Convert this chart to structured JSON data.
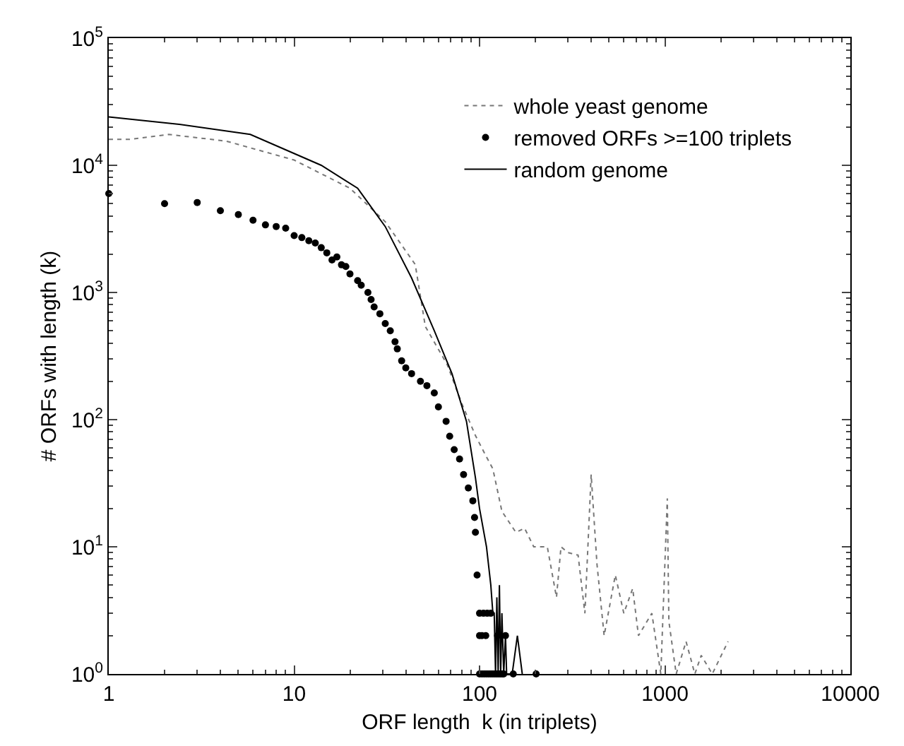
{
  "chart_data": {
    "type": "line",
    "xlabel": "ORF length  k (in triplets)",
    "ylabel": "# ORFs with length (k)",
    "log": "xy",
    "grid": false,
    "legend": "top right",
    "xlim": [
      1,
      10000
    ],
    "xticks": [
      1,
      10,
      100,
      1000,
      10000
    ],
    "ylim": [
      1,
      100000
    ],
    "yticks": [
      {
        "value": 1,
        "label": "10$^{0}$"
      },
      {
        "value": 10,
        "label": "10$^{1}$"
      },
      {
        "value": 100,
        "label": "10$^{2}$"
      },
      {
        "value": 1000,
        "label": "10$^{3}$"
      },
      {
        "value": 10000,
        "label": "10$^{4}$"
      },
      {
        "value": 100000,
        "label": "10$^{5}$"
      }
    ],
    "series": [
      {
        "name": "whole yeast genome",
        "type": "line",
        "line_style": "dotted",
        "marker": "none",
        "color": "#777777",
        "x": [
          1,
          1.3,
          2.1,
          4.3,
          10,
          20,
          31,
          45,
          51,
          67,
          80,
          95,
          106,
          118,
          132,
          157,
          175,
          196,
          232,
          260,
          275,
          300,
          340,
          370,
          400,
          430,
          470,
          540,
          600,
          670,
          720,
          850,
          950,
          1030,
          1050,
          1150,
          1300,
          1450,
          1570,
          1800,
          2190
        ],
        "values": [
          16000,
          16000,
          17500,
          15500,
          11000,
          6600,
          3600,
          1660,
          540,
          270,
          135,
          75,
          55,
          41,
          19,
          13,
          14,
          10,
          10,
          4,
          10,
          9,
          8.6,
          3,
          37,
          7.3,
          2,
          6,
          3,
          4.7,
          2,
          3,
          1,
          24,
          2.6,
          1,
          1.8,
          1,
          1.4,
          1,
          1.8
        ]
      },
      {
        "name": "removed ORFs >=100 triplets",
        "type": "scatter",
        "marker": "circle",
        "color": "#000000",
        "x": [
          1,
          2,
          3,
          4,
          5,
          6,
          7,
          8,
          9,
          10,
          11,
          12,
          13,
          14,
          15,
          16,
          17,
          18,
          19,
          20,
          22,
          23,
          25,
          26,
          27,
          29,
          31,
          33,
          35,
          36,
          38,
          40,
          43,
          48,
          52,
          57,
          60,
          66,
          69,
          73,
          78,
          82,
          87,
          92,
          94,
          95,
          97,
          100,
          105,
          110,
          115,
          100,
          103,
          108,
          125,
          138,
          100,
          103,
          106,
          109,
          112,
          115,
          118,
          121,
          124,
          127,
          130,
          133,
          135,
          152,
          202
        ],
        "values": [
          6000,
          5000,
          5100,
          4400,
          4100,
          3700,
          3400,
          3300,
          3200,
          2800,
          2700,
          2550,
          2450,
          2250,
          2050,
          1800,
          1900,
          1650,
          1600,
          1400,
          1240,
          1140,
          1000,
          880,
          770,
          680,
          570,
          500,
          410,
          360,
          290,
          255,
          230,
          200,
          185,
          162,
          126,
          97,
          74,
          58,
          49,
          37,
          29,
          23,
          17,
          13,
          6,
          3,
          3,
          3,
          3,
          2,
          2,
          2,
          2,
          2,
          1,
          1,
          1,
          1,
          1,
          1,
          1,
          1,
          1,
          1,
          1,
          1,
          1,
          1,
          1
        ]
      },
      {
        "name": "random genome",
        "type": "line",
        "line_style": "solid",
        "marker": "none",
        "color": "#000000",
        "x": [
          1,
          2.4,
          5.8,
          14,
          22,
          31,
          43,
          57,
          71,
          85,
          95,
          100,
          109,
          115,
          118,
          120,
          122,
          124,
          126,
          128,
          130,
          132,
          135,
          138,
          140,
          150,
          160,
          170
        ],
        "values": [
          24000,
          21000,
          17500,
          10000,
          6600,
          3300,
          1300,
          500,
          230,
          97,
          35,
          20,
          10,
          5,
          3,
          3,
          1,
          4,
          1,
          5,
          1,
          3,
          1,
          2,
          1,
          1,
          2,
          1
        ]
      }
    ]
  }
}
